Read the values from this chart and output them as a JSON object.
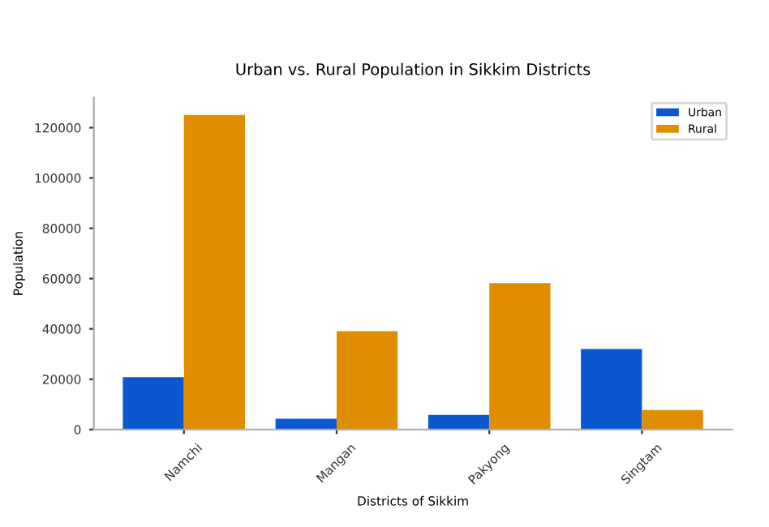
{
  "chart_data": {
    "type": "bar",
    "title": "Urban vs. Rural Population in Sikkim Districts",
    "xlabel": "Districts of Sikkim",
    "ylabel": "Population",
    "categories": [
      "Namchi",
      "Mangan",
      "Pakyong",
      "Singtam"
    ],
    "series": [
      {
        "name": "Urban",
        "color": "#0b57d0",
        "values": [
          20800,
          4300,
          5800,
          32000
        ]
      },
      {
        "name": "Rural",
        "color": "#e08e00",
        "values": [
          125100,
          39100,
          58200,
          7700
        ]
      }
    ],
    "ylim": [
      0,
      132000
    ],
    "yticks": [
      0,
      20000,
      40000,
      60000,
      80000,
      100000,
      120000
    ],
    "grid": false,
    "legend": "top right"
  }
}
